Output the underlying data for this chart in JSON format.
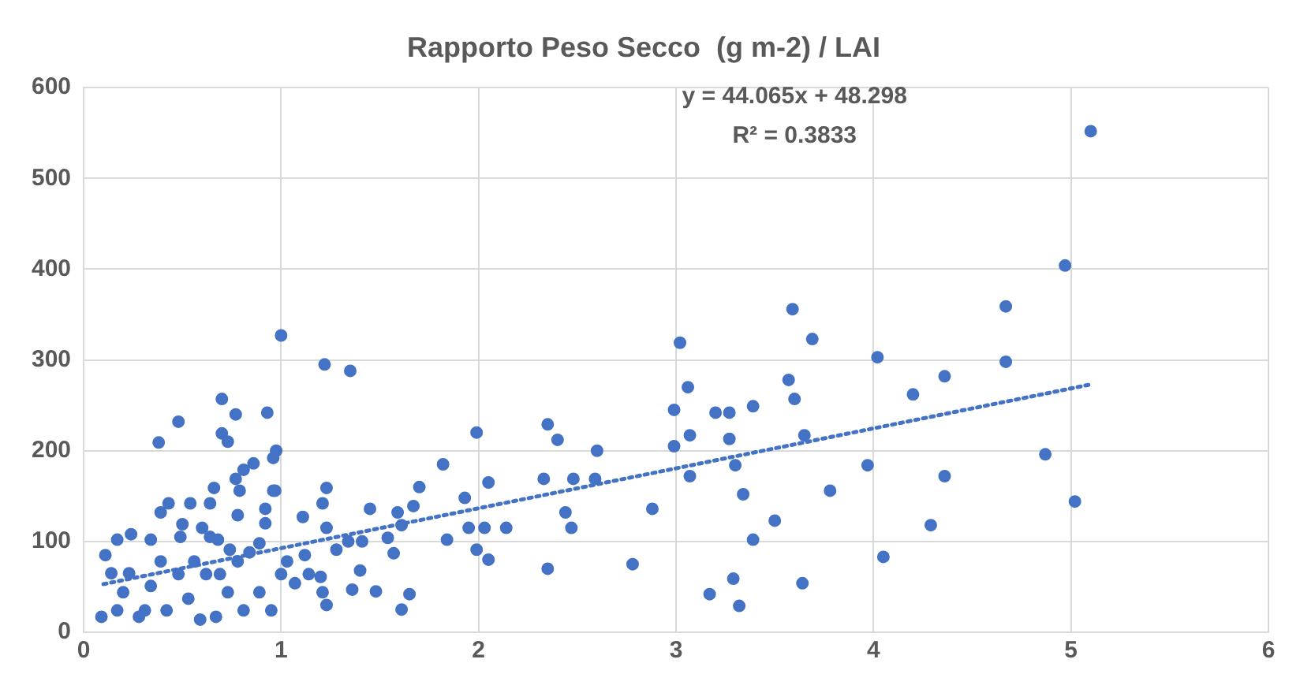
{
  "chart_data": {
    "type": "scatter",
    "title": "Rapporto Peso Secco  (g m-2) / LAI",
    "xlim": [
      0,
      6
    ],
    "xticks": [
      0,
      1,
      2,
      3,
      4,
      5,
      6
    ],
    "ylim": [
      0,
      600
    ],
    "yticks": [
      0,
      100,
      200,
      300,
      400,
      500,
      600
    ],
    "grid": true,
    "legend": false,
    "marker": "circle",
    "annotations": [
      "y = 44.065x + 48.298",
      "R² = 0.3833"
    ],
    "series": [
      {
        "color": "#4472c4",
        "x": [
          5.1,
          4.97,
          4.67,
          4.67,
          4.36,
          4.2,
          4.02,
          3.97,
          3.78,
          4.05,
          4.29,
          4.36,
          4.87,
          5.02,
          3.59,
          3.69,
          3.57,
          3.6,
          3.65,
          3.64,
          3.5,
          3.39,
          3.34,
          3.3,
          3.27,
          3.39,
          3.27,
          3.2,
          3.29,
          3.32,
          3.17,
          3.07,
          3.07,
          3.06,
          3.02,
          2.99,
          2.99,
          1.0,
          1.22,
          1.35,
          0.93,
          0.975,
          0.97,
          1.99,
          1.82,
          2.35,
          2.4,
          2.6,
          2.48,
          2.59,
          2.33,
          2.88,
          2.78,
          2.35,
          2.44,
          2.47,
          2.05,
          1.93,
          1.95,
          2.03,
          2.14,
          1.99,
          2.05,
          1.84,
          1.7,
          1.67,
          1.59,
          1.61,
          1.45,
          1.54,
          1.57,
          1.65,
          1.61,
          1.48,
          1.36,
          1.4,
          1.23,
          1.23,
          1.21,
          1.23,
          1.11,
          1.2,
          1.12,
          1.28,
          1.34,
          1.41,
          1.07,
          1.03,
          0.92,
          0.92,
          0.7,
          0.77,
          0.48,
          0.38,
          0.7,
          0.73,
          0.96,
          0.86,
          0.81,
          0.77,
          0.79,
          0.66,
          0.64,
          0.96,
          0.43,
          0.39,
          0.54,
          0.78,
          0.5,
          0.49,
          0.6,
          0.64,
          0.24,
          0.17,
          0.34,
          0.68,
          0.74,
          0.89,
          0.84,
          0.09,
          0.11,
          0.14,
          0.2,
          0.28,
          0.34,
          0.42,
          0.48,
          0.53,
          0.59,
          0.67,
          0.73,
          0.78,
          0.81,
          0.89,
          0.95,
          1.0,
          1.14,
          1.21,
          0.23,
          0.62,
          0.39,
          0.56,
          0.69,
          0.31,
          0.17
        ],
        "values": [
          552,
          404,
          359,
          298,
          282,
          262,
          303,
          184,
          156,
          83,
          118,
          172,
          196,
          144,
          356,
          323,
          278,
          257,
          217,
          54,
          123,
          102,
          152,
          184,
          213,
          249,
          242,
          242,
          59,
          29,
          42,
          217,
          172,
          270,
          319,
          245,
          205,
          327,
          295,
          288,
          242,
          200,
          156,
          220,
          185,
          229,
          212,
          200,
          169,
          169,
          169,
          136,
          75,
          70,
          132,
          115,
          165,
          148,
          115,
          115,
          115,
          91,
          80,
          102,
          160,
          139,
          132,
          118,
          136,
          104,
          87,
          42,
          25,
          45,
          47,
          68,
          30,
          159,
          142,
          115,
          127,
          61,
          85,
          91,
          100,
          100,
          54,
          78,
          136,
          120,
          257,
          240,
          232,
          209,
          219,
          210,
          192,
          186,
          179,
          169,
          156,
          159,
          142,
          156,
          142,
          132,
          142,
          129,
          119,
          105,
          115,
          105,
          108,
          102,
          102,
          102,
          91,
          98,
          88,
          17,
          85,
          65,
          44,
          17,
          51,
          24,
          64,
          37,
          14,
          17,
          44,
          78,
          24,
          44,
          24,
          64,
          64,
          44,
          65,
          64,
          78,
          78,
          64,
          24,
          24
        ]
      },
      {
        "type": "line",
        "color": "#4472c4",
        "line_style": "dotted",
        "marker": "none",
        "x": [
          0.1,
          5.1
        ],
        "values": [
          53,
          273
        ]
      }
    ]
  }
}
